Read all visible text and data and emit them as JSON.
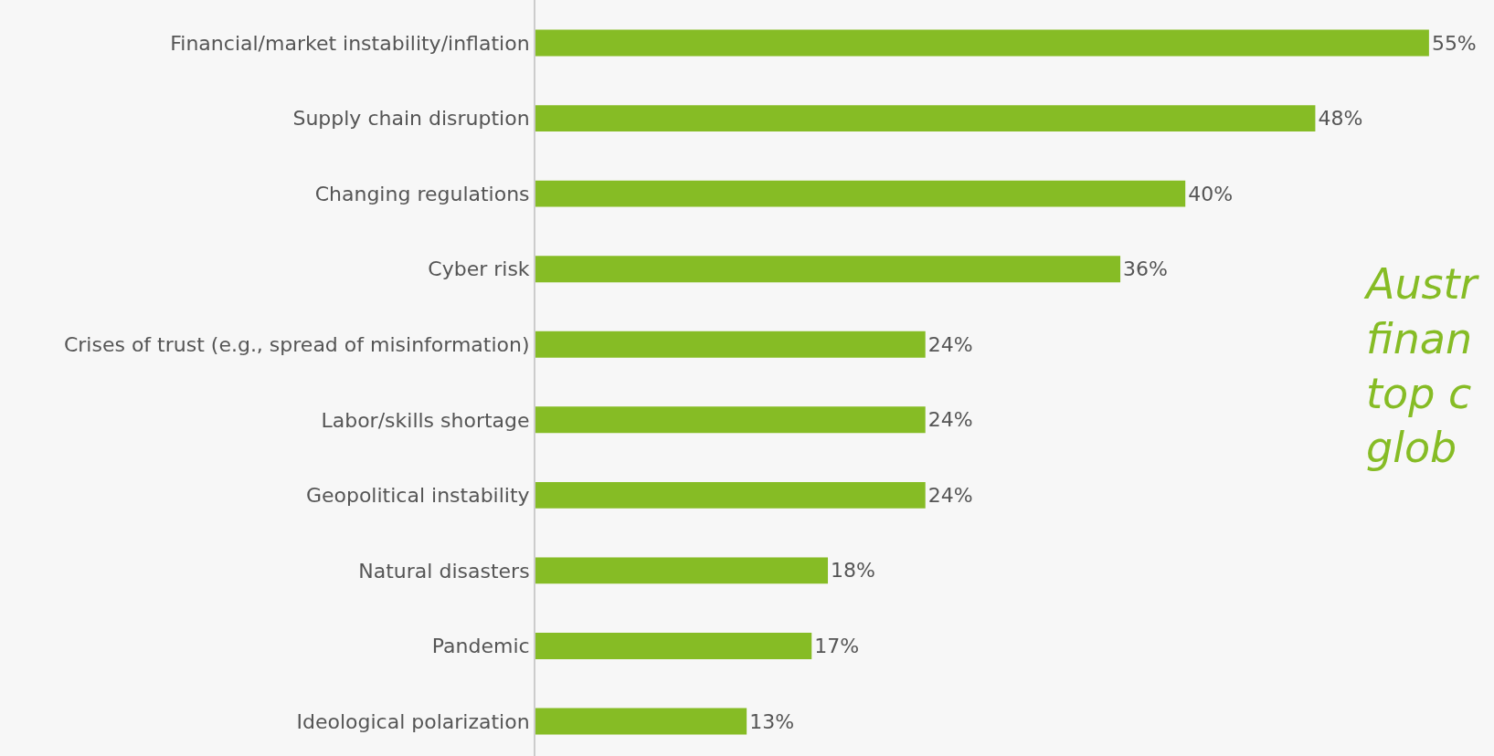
{
  "chart_data": {
    "type": "bar",
    "orientation": "horizontal",
    "categories": [
      "Financial/market instability/inflation",
      "Supply chain disruption",
      "Changing regulations",
      "Cyber risk",
      "Crises of trust (e.g., spread of misinformation)",
      "Labor/skills shortage",
      "Geopolitical instability",
      "Natural disasters",
      "Pandemic",
      "Ideological polarization"
    ],
    "values": [
      55,
      48,
      40,
      36,
      24,
      24,
      24,
      18,
      17,
      13
    ],
    "value_labels": [
      "55%",
      "48%",
      "40%",
      "36%",
      "24%",
      "24%",
      "24%",
      "18%",
      "17%",
      "13%"
    ],
    "color": "#86bc25",
    "xlim": [
      0,
      59
    ],
    "tick_labels": "y",
    "grid": false,
    "legend": false,
    "annotations": [
      "Austr\nfinan\ntop c\nglob"
    ]
  }
}
